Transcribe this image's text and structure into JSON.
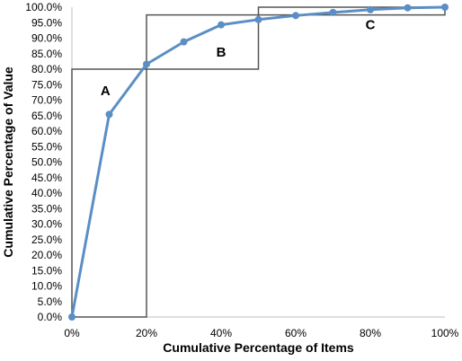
{
  "chart_data": {
    "type": "line",
    "xlabel": "Cumulative Percentage of Items",
    "ylabel": "Cumulative Percentage of Value",
    "xlim": [
      0,
      100
    ],
    "ylim": [
      0,
      100
    ],
    "x_ticks": [
      "0%",
      "20%",
      "40%",
      "60%",
      "80%",
      "100%"
    ],
    "y_ticks": [
      "0.0%",
      "5.0%",
      "10.0%",
      "15.0%",
      "20.0%",
      "25.0%",
      "30.0%",
      "35.0%",
      "40.0%",
      "45.0%",
      "50.0%",
      "55.0%",
      "60.0%",
      "65.0%",
      "70.0%",
      "75.0%",
      "80.0%",
      "85.0%",
      "90.0%",
      "95.0%",
      "100.0%"
    ],
    "grid": false,
    "series": [
      {
        "color": "#5b8ec4",
        "x": [
          0,
          10,
          20,
          30,
          40,
          50,
          60,
          70,
          80,
          90,
          100
        ],
        "y": [
          0,
          65.4,
          81.6,
          88.8,
          94.3,
          96.0,
          97.3,
          98.3,
          99.2,
          99.8,
          100
        ]
      }
    ],
    "regions": [
      {
        "label": "A",
        "x": [
          0,
          20
        ],
        "y": [
          0,
          80
        ],
        "label_at": [
          9,
          73
        ]
      },
      {
        "label": "B",
        "x": [
          20,
          50
        ],
        "y": [
          80,
          97.5
        ],
        "label_at": [
          40,
          85.5
        ]
      },
      {
        "label": "C",
        "x": [
          50,
          100
        ],
        "y": [
          97.5,
          100
        ],
        "label_at": [
          80,
          94.3
        ]
      }
    ],
    "region_color": "#555555"
  }
}
